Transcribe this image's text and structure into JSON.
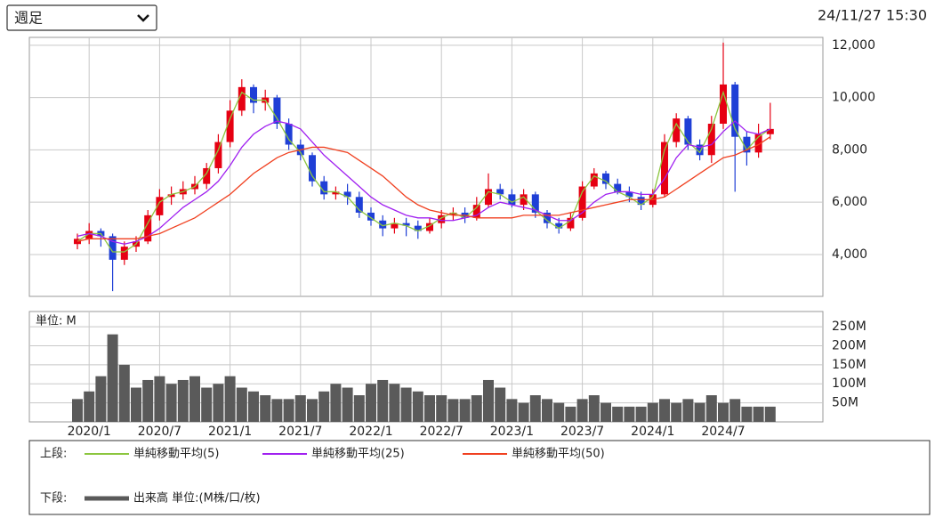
{
  "chart_data": {
    "type": "candlestick",
    "period_select": "週足",
    "timestamp": "24/11/27 15:30",
    "categories": [
      null,
      "2020/1",
      null,
      null,
      null,
      null,
      null,
      "2020/7",
      null,
      null,
      null,
      null,
      null,
      "2021/1",
      null,
      null,
      null,
      null,
      null,
      "2021/7",
      null,
      null,
      null,
      null,
      null,
      "2022/1",
      null,
      null,
      null,
      null,
      null,
      "2022/7",
      null,
      null,
      null,
      null,
      null,
      "2023/1",
      null,
      null,
      null,
      null,
      null,
      "2023/7",
      null,
      null,
      null,
      null,
      null,
      "2024/1",
      null,
      null,
      null,
      null,
      null,
      "2024/7",
      null,
      null,
      null,
      null
    ],
    "ylim": [
      2400,
      12300
    ],
    "yticks": [
      {
        "value": 4000,
        "label": "4,000"
      },
      {
        "value": 6000,
        "label": "6,000"
      },
      {
        "value": 8000,
        "label": "8,000"
      },
      {
        "value": 10000,
        "label": "10,000"
      },
      {
        "value": 12000,
        "label": "12,000"
      }
    ],
    "grid": true,
    "up_color": "#e60012",
    "down_color": "#1f3fd6",
    "candles": {
      "open": [
        4400,
        4600,
        4900,
        4700,
        3800,
        4300,
        4500,
        5500,
        6200,
        6300,
        6500,
        6700,
        7300,
        8300,
        9500,
        10400,
        9800,
        10000,
        9000,
        8200,
        7800,
        6800,
        6300,
        6400,
        6200,
        5600,
        5300,
        5000,
        5200,
        5100,
        4900,
        5200,
        5500,
        5600,
        5400,
        5900,
        6500,
        6300,
        5900,
        6300,
        5600,
        5200,
        5000,
        5400,
        6600,
        7100,
        6700,
        6400,
        6200,
        5900,
        6300,
        8300,
        9200,
        8200,
        7800,
        9000,
        10500,
        8500,
        7900,
        8600
      ],
      "high": [
        4800,
        5200,
        5000,
        4800,
        4500,
        4700,
        5700,
        6500,
        6600,
        6800,
        7000,
        7500,
        8600,
        9900,
        10700,
        10500,
        10300,
        10100,
        9200,
        8400,
        7900,
        7000,
        6600,
        6700,
        6400,
        5800,
        5500,
        5400,
        5400,
        5300,
        5400,
        5700,
        5800,
        5800,
        6200,
        7100,
        6700,
        6500,
        6500,
        6400,
        5700,
        5400,
        5600,
        6800,
        7300,
        7200,
        6900,
        6600,
        6400,
        6500,
        8600,
        9400,
        9300,
        8400,
        9300,
        12100,
        10600,
        8700,
        9000,
        9800
      ],
      "low": [
        4200,
        4400,
        4300,
        2600,
        3600,
        4100,
        4400,
        5300,
        5900,
        6100,
        6300,
        6500,
        7100,
        8100,
        9300,
        9400,
        9500,
        8800,
        8000,
        7600,
        6600,
        6100,
        6100,
        5900,
        5400,
        5100,
        4700,
        4800,
        4700,
        4600,
        4800,
        5000,
        5300,
        5200,
        5300,
        5800,
        6100,
        5800,
        5700,
        5400,
        5000,
        4800,
        4900,
        5300,
        6500,
        6500,
        6300,
        6000,
        5700,
        5800,
        6200,
        8100,
        8000,
        7600,
        7500,
        8800,
        6400,
        7400,
        7700,
        8400
      ],
      "close": [
        4600,
        4900,
        4700,
        3800,
        4300,
        4500,
        5500,
        6200,
        6300,
        6500,
        6700,
        7300,
        8300,
        9500,
        10400,
        9800,
        10000,
        9000,
        8200,
        7800,
        6800,
        6300,
        6400,
        6200,
        5600,
        5300,
        5000,
        5200,
        5100,
        4900,
        5200,
        5500,
        5600,
        5400,
        5900,
        6500,
        6300,
        5900,
        6300,
        5600,
        5200,
        5000,
        5400,
        6600,
        7100,
        6700,
        6400,
        6200,
        5900,
        6300,
        8300,
        9200,
        8200,
        7800,
        9000,
        10500,
        8500,
        7900,
        8600,
        8800
      ]
    },
    "series": [
      {
        "name": "単純移動平均(5)",
        "color": "#8cc63f",
        "values": [
          4500,
          4800,
          4800,
          4100,
          4100,
          4400,
          5200,
          6000,
          6300,
          6400,
          6600,
          7100,
          8000,
          9200,
          10200,
          9900,
          9900,
          9200,
          8400,
          7900,
          7000,
          6400,
          6400,
          6200,
          5700,
          5400,
          5100,
          5200,
          5100,
          4900,
          5100,
          5400,
          5600,
          5400,
          5800,
          6400,
          6300,
          6000,
          6200,
          5700,
          5300,
          5000,
          5300,
          6400,
          7000,
          6800,
          6400,
          6200,
          5900,
          6200,
          8000,
          9000,
          8300,
          7900,
          8800,
          10200,
          8800,
          8000,
          8500,
          8800
        ]
      },
      {
        "name": "単純移動平均(25)",
        "color": "#a020f0",
        "values": [
          4700,
          4800,
          4700,
          4500,
          4400,
          4500,
          4700,
          5000,
          5400,
          5800,
          6100,
          6400,
          6800,
          7400,
          8100,
          8600,
          8900,
          9100,
          9000,
          8800,
          8300,
          7800,
          7400,
          7000,
          6600,
          6200,
          5900,
          5700,
          5500,
          5400,
          5400,
          5300,
          5300,
          5400,
          5500,
          5800,
          6000,
          5900,
          5800,
          5700,
          5500,
          5300,
          5300,
          5600,
          6000,
          6300,
          6400,
          6400,
          6300,
          6300,
          6900,
          7700,
          8200,
          8100,
          8200,
          8700,
          9100,
          8700,
          8600,
          8800
        ]
      },
      {
        "name": "単純移動平均(50)",
        "color": "#f04020",
        "values": [
          4500,
          4600,
          4600,
          4600,
          4600,
          4600,
          4700,
          4800,
          5000,
          5200,
          5400,
          5700,
          6000,
          6300,
          6700,
          7100,
          7400,
          7700,
          7900,
          8000,
          8100,
          8100,
          8000,
          7900,
          7600,
          7300,
          7000,
          6600,
          6200,
          5900,
          5700,
          5600,
          5500,
          5500,
          5400,
          5400,
          5400,
          5400,
          5500,
          5500,
          5500,
          5500,
          5600,
          5700,
          5800,
          5900,
          6000,
          6100,
          6100,
          6100,
          6200,
          6500,
          6800,
          7100,
          7400,
          7700,
          7800,
          8000,
          8200,
          8500
        ]
      }
    ],
    "volume": {
      "unit_label": "単位: M",
      "name": "出来高 単位:(M株/口/枚)",
      "color": "#5a5a5a",
      "ylim": [
        0,
        290
      ],
      "yticks": [
        {
          "value": 50,
          "label": "50M"
        },
        {
          "value": 100,
          "label": "100M"
        },
        {
          "value": 150,
          "label": "150M"
        },
        {
          "value": 200,
          "label": "200M"
        },
        {
          "value": 250,
          "label": "250M"
        }
      ],
      "values": [
        60,
        80,
        120,
        230,
        150,
        90,
        110,
        120,
        100,
        110,
        120,
        90,
        100,
        120,
        90,
        80,
        70,
        60,
        60,
        70,
        60,
        80,
        100,
        90,
        70,
        100,
        110,
        100,
        90,
        80,
        70,
        70,
        60,
        60,
        70,
        110,
        90,
        60,
        50,
        70,
        60,
        50,
        40,
        60,
        70,
        50,
        40,
        40,
        40,
        50,
        60,
        50,
        60,
        50,
        70,
        50,
        60,
        40,
        40,
        40
      ]
    },
    "legend": {
      "upper_label": "上段:",
      "lower_label": "下段:"
    }
  }
}
